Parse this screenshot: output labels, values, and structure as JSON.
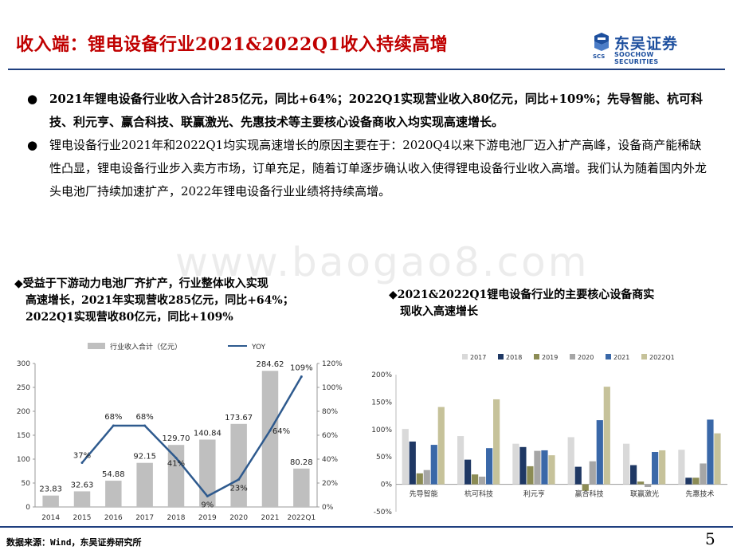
{
  "page": {
    "title": "收入端：锂电设备行业2021&2022Q1收入持续高增",
    "page_number": "5",
    "source": "数据来源：Wind，东吴证券研究所",
    "watermark": "www.baogao8.com"
  },
  "brand": {
    "name_cn": "东吴证券",
    "name_en": "SOOCHOW SECURITIES",
    "abbr": "SCS",
    "color": "#1d4f9e",
    "title_color": "#c00000"
  },
  "bullets": [
    {
      "symbol": "●",
      "bold": "2021年锂电设备行业收入合计285亿元，同比+64%；2022Q1实现营业收入80亿元，同比+109%；先导智能、杭可科技、利元亨、赢合科技、联赢激光、先惠技术等主要核心设备商收入均实现高速增长。",
      "normal": ""
    },
    {
      "symbol": "●",
      "bold": "",
      "normal": "锂电设备行业2021年和2022Q1均实现高速增长的原因主要在于：2020Q4以来下游电池厂迈入扩产高峰，设备商产能稀缺性凸显，锂电设备行业步入卖方市场，订单充足，随着订单逐步确认收入使得锂电设备行业收入高增。我们认为随着国内外龙头电池厂持续加速扩产，2022年锂电设备行业业绩将持续高增。"
    }
  ],
  "chart1_title_line1": "◆受益于下游动力电池厂齐扩产，行业整体收入实现",
  "chart1_title_line2": "高速增长，2021年实现营收285亿元，同比+64%；",
  "chart1_title_line3": "2022Q1实现营收80亿元，同比+109%",
  "chart2_title_line1": "◆2021&2022Q1锂电设备行业的主要核心设备商实",
  "chart2_title_line2": "现收入高速增长",
  "chart_data": [
    {
      "type": "bar+line",
      "categories": [
        "2014",
        "2015",
        "2016",
        "2017",
        "2018",
        "2019",
        "2020",
        "2021",
        "2022Q1"
      ],
      "series": [
        {
          "name": "行业收入合计（亿元）",
          "type": "bar",
          "axis": "left",
          "color": "#bfbfbf",
          "values": [
            23.83,
            32.63,
            54.88,
            92.15,
            129.7,
            140.84,
            173.67,
            284.62,
            80.28
          ],
          "labels": [
            "23.83",
            "32.63",
            "54.88",
            "92.15",
            "129.70",
            "140.84",
            "173.67",
            "284.62",
            "80.28"
          ]
        },
        {
          "name": "YOY",
          "type": "line",
          "axis": "right",
          "color": "#2e5a8e",
          "values": [
            null,
            37,
            68,
            68,
            41,
            9,
            23,
            64,
            109
          ],
          "labels": [
            "",
            "37%",
            "68%",
            "68%",
            "41%",
            "9%",
            "23%",
            "64%",
            "109%"
          ]
        }
      ],
      "y_left": {
        "min": 0,
        "max": 300,
        "ticks": [
          "0",
          "50",
          "100",
          "150",
          "200",
          "250",
          "300"
        ]
      },
      "y_right": {
        "min": 0,
        "max": 120,
        "ticks": [
          "0%",
          "20%",
          "40%",
          "60%",
          "80%",
          "100%",
          "120%"
        ]
      },
      "legend": "top"
    },
    {
      "type": "bar",
      "categories": [
        "先导智能",
        "杭可科技",
        "利元亨",
        "赢合科技",
        "联赢激光",
        "先惠技术"
      ],
      "series": [
        {
          "name": "2017",
          "color": "#d9d9d9",
          "values": [
            101,
            88,
            74,
            86,
            74,
            63
          ]
        },
        {
          "name": "2018",
          "color": "#1f3864",
          "values": [
            78,
            45,
            68,
            32,
            35,
            12
          ]
        },
        {
          "name": "2019",
          "color": "#8c8c55",
          "values": [
            20,
            18,
            33,
            -12,
            5,
            12
          ]
        },
        {
          "name": "2020",
          "color": "#a6a6a6",
          "values": [
            26,
            14,
            61,
            42,
            -5,
            38
          ]
        },
        {
          "name": "2021",
          "color": "#3a68a8",
          "values": [
            72,
            66,
            62,
            117,
            59,
            118
          ]
        },
        {
          "name": "2022Q1",
          "color": "#c6c29a",
          "values": [
            141,
            155,
            53,
            178,
            62,
            93
          ]
        }
      ],
      "y": {
        "min": -50,
        "max": 200,
        "ticks": [
          "-50%",
          "0%",
          "50%",
          "100%",
          "150%",
          "200%"
        ]
      },
      "legend": "top"
    }
  ]
}
